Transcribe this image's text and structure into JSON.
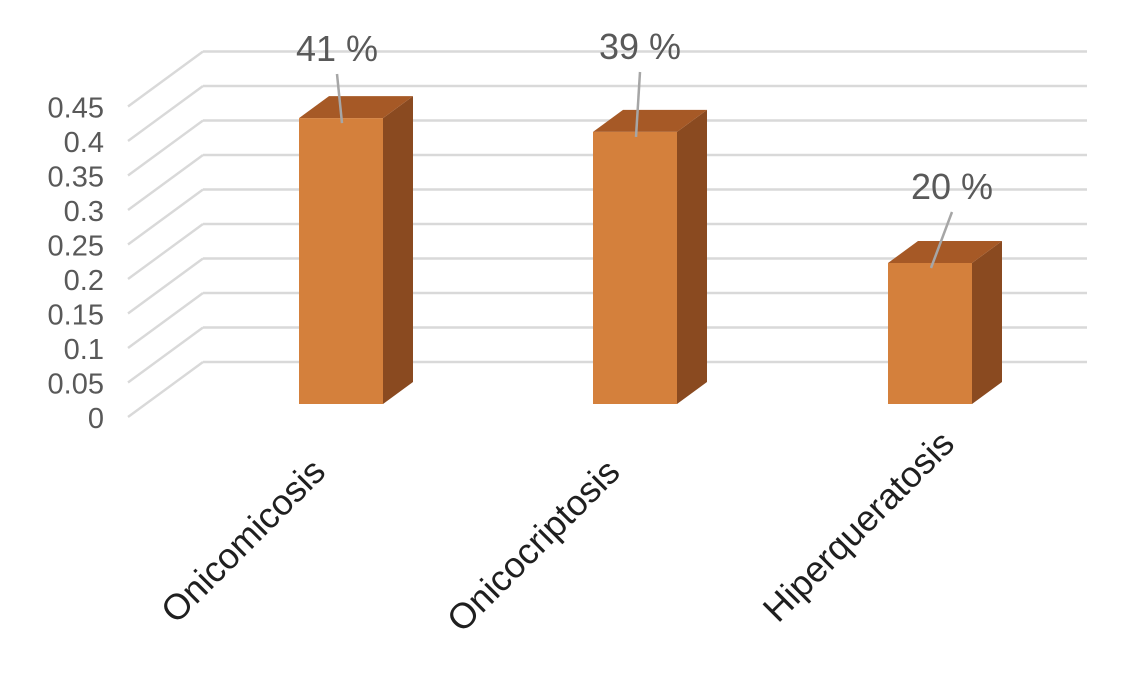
{
  "chart_data": {
    "type": "bar",
    "projection": "3d",
    "title": "",
    "xlabel": "",
    "ylabel": "",
    "categories": [
      "Onicomicosis",
      "Onicocriptosis",
      "Hiperqueratosis"
    ],
    "values": [
      0.41,
      0.39,
      0.2
    ],
    "value_labels": [
      "41 %",
      "39 %",
      "20 %"
    ],
    "yticks": [
      0,
      0.05,
      0.1,
      0.15,
      0.2,
      0.25,
      0.3,
      0.35,
      0.4,
      0.45
    ],
    "ytick_labels": [
      "0",
      "0.05",
      "0.1",
      "0.15",
      "0.2",
      "0.25",
      "0.3",
      "0.35",
      "0.4",
      "0.45"
    ],
    "ylim": [
      0,
      0.45
    ],
    "grid": true,
    "legend": false,
    "has_data_labels": true,
    "data_labels_have_leader_lines": true
  },
  "colors": {
    "background": "#FFFFFF",
    "bar_front": "#D4803C",
    "bar_top": "#A65926",
    "bar_side": "#8A4A20",
    "gridline": "#D9D9D9",
    "leader_line": "#A6A6A6",
    "tick_text": "#595959",
    "value_text": "#595959",
    "category_text": "#1F1F1F"
  }
}
